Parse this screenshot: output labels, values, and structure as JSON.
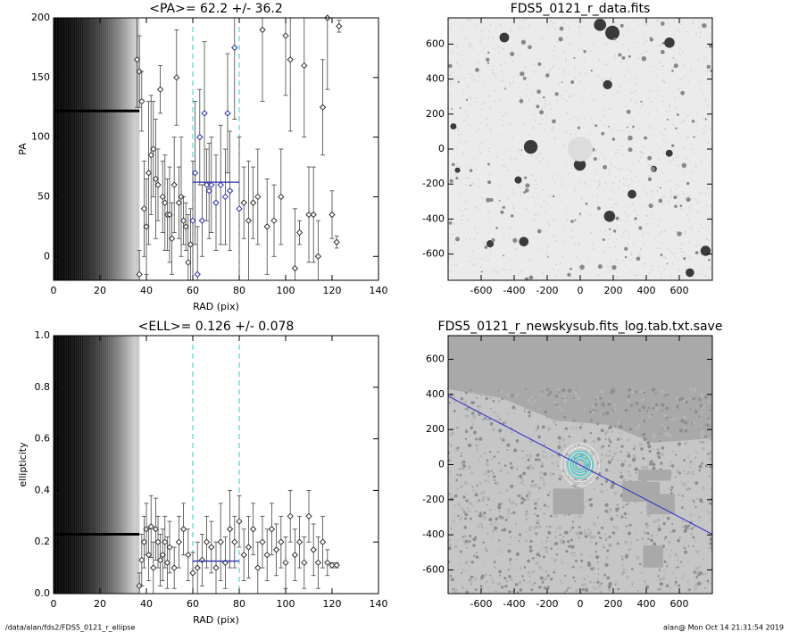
{
  "chart_data": [
    {
      "type": "scatter",
      "title": "<PA>=  62.2 +/-  36.2",
      "xlabel": "RAD (pix)",
      "ylabel": "PA",
      "xlim": [
        0,
        140
      ],
      "xticks": [
        0,
        20,
        40,
        60,
        80,
        100,
        120,
        140
      ],
      "ylim": [
        -20,
        200
      ],
      "yticks": [
        0,
        50,
        100,
        150,
        200
      ],
      "color": "#333333",
      "highlight_color": "#2b2bb0",
      "vline_color": "#33cccc",
      "mean_color": "#2b2bb0",
      "vlines": [
        60,
        80
      ],
      "mean_line": {
        "x": [
          60,
          80
        ],
        "y": 62.2
      },
      "inner_band": {
        "x": [
          0,
          37
        ],
        "y": 122
      },
      "x": [
        36,
        37,
        37,
        38,
        39,
        40,
        41,
        42,
        43,
        44,
        45,
        46,
        47,
        48,
        49,
        50,
        51,
        52,
        53,
        54,
        55,
        56,
        57,
        58,
        59,
        60,
        61,
        62,
        63,
        64,
        65,
        66,
        67,
        68,
        70,
        72,
        74,
        75,
        76,
        78,
        80,
        82,
        84,
        86,
        88,
        90,
        92,
        95,
        98,
        100,
        102,
        104,
        106,
        108,
        110,
        112,
        114,
        116,
        118,
        120,
        122,
        123
      ],
      "values": [
        165,
        155,
        -15,
        130,
        40,
        25,
        70,
        85,
        90,
        65,
        60,
        140,
        50,
        45,
        35,
        35,
        15,
        60,
        150,
        45,
        50,
        30,
        25,
        -5,
        10,
        30,
        70,
        -15,
        100,
        30,
        120,
        60,
        55,
        60,
        45,
        60,
        50,
        120,
        55,
        175,
        40,
        45,
        30,
        45,
        50,
        190,
        25,
        30,
        50,
        185,
        165,
        -10,
        20,
        160,
        35,
        35,
        0,
        125,
        200,
        35,
        12,
        193
      ],
      "errors": [
        40,
        30,
        20,
        25,
        40,
        40,
        60,
        50,
        40,
        50,
        30,
        20,
        30,
        40,
        30,
        40,
        30,
        40,
        40,
        30,
        50,
        20,
        20,
        40,
        30,
        50,
        60,
        40,
        40,
        30,
        60,
        30,
        40,
        40,
        40,
        50,
        40,
        50,
        50,
        60,
        60,
        30,
        50,
        30,
        40,
        60,
        40,
        30,
        40,
        50,
        60,
        50,
        10,
        60,
        40,
        40,
        30,
        40,
        60,
        20,
        5,
        5
      ]
    },
    {
      "type": "image",
      "title": "FDS5_0121_r_data.fits",
      "xlim": [
        -800,
        800
      ],
      "xticks": [
        -600,
        -400,
        -200,
        0,
        200,
        400,
        600
      ],
      "ylim": [
        -750,
        750
      ],
      "yticks": [
        -600,
        -400,
        -200,
        0,
        200,
        400,
        600
      ]
    },
    {
      "type": "scatter",
      "title": "<ELL>= 0.126 +/-  0.078",
      "xlabel": "RAD (pix)",
      "ylabel": "ellipticity",
      "xlim": [
        0,
        140
      ],
      "xticks": [
        0,
        20,
        40,
        60,
        80,
        100,
        120,
        140
      ],
      "ylim": [
        0,
        1
      ],
      "yticks": [
        {
          "value": 0,
          "label": "0.0"
        },
        0.2,
        0.4,
        0.6,
        0.8,
        {
          "value": 1,
          "label": "1.0"
        }
      ],
      "color": "#333333",
      "highlight_color": "#333333",
      "vline_color": "#33cccc",
      "mean_color": "#2b2bb0",
      "vlines": [
        60,
        80
      ],
      "mean_line": {
        "x": [
          60,
          80
        ],
        "y": 0.126
      },
      "inner_band": {
        "x": [
          0,
          37
        ],
        "y": 0.23
      },
      "x": [
        37,
        38,
        39,
        40,
        41,
        42,
        43,
        44,
        45,
        46,
        47,
        48,
        49,
        50,
        52,
        54,
        56,
        58,
        60,
        62,
        64,
        66,
        68,
        70,
        72,
        74,
        76,
        78,
        80,
        82,
        84,
        86,
        88,
        90,
        92,
        94,
        96,
        98,
        100,
        102,
        104,
        106,
        108,
        110,
        112,
        114,
        116,
        118,
        120,
        122
      ],
      "values": [
        0.03,
        0.13,
        0.2,
        0.25,
        0.15,
        0.26,
        0.1,
        0.25,
        0.2,
        0.13,
        0.15,
        0.2,
        0.12,
        0.18,
        0.1,
        0.2,
        0.25,
        0.15,
        0.08,
        0.1,
        0.13,
        0.2,
        0.18,
        0.1,
        0.2,
        0.12,
        0.25,
        0.2,
        0.28,
        0.15,
        0.18,
        0.25,
        0.1,
        0.2,
        0.15,
        0.25,
        0.17,
        0.2,
        0.12,
        0.3,
        0.15,
        0.2,
        0.12,
        0.3,
        0.17,
        0.12,
        0.2,
        0.12,
        0.11,
        0.11
      ],
      "errors": [
        0.05,
        0.1,
        0.1,
        0.1,
        0.1,
        0.12,
        0.1,
        0.12,
        0.1,
        0.1,
        0.1,
        0.1,
        0.1,
        0.1,
        0.08,
        0.1,
        0.1,
        0.1,
        0.08,
        0.1,
        0.1,
        0.1,
        0.1,
        0.1,
        0.15,
        0.1,
        0.15,
        0.1,
        0.1,
        0.1,
        0.12,
        0.1,
        0.1,
        0.1,
        0.1,
        0.1,
        0.1,
        0.1,
        0.1,
        0.1,
        0.1,
        0.1,
        0.1,
        0.1,
        0.1,
        0.1,
        0.1,
        0.05,
        0.01,
        0.01
      ]
    },
    {
      "type": "image",
      "title": "FDS5_0121_r_newskysub.fits_log.tab.txt.save",
      "xlim": [
        -800,
        800
      ],
      "xticks": [
        -600,
        -400,
        -200,
        0,
        200,
        400,
        600
      ],
      "ylim": [
        -735,
        735
      ],
      "yticks": [
        -600,
        -400,
        -200,
        0,
        200,
        400,
        600
      ],
      "line": {
        "x": [
          -800,
          800
        ],
        "y": [
          391,
          -397
        ]
      },
      "line_color": "#2b2bd0"
    }
  ],
  "footer": {
    "left": "/data/alan/fds2/FDS5_0121_r_ellipse",
    "right": "alan@  Mon Oct 14 21:31:54 2019"
  }
}
